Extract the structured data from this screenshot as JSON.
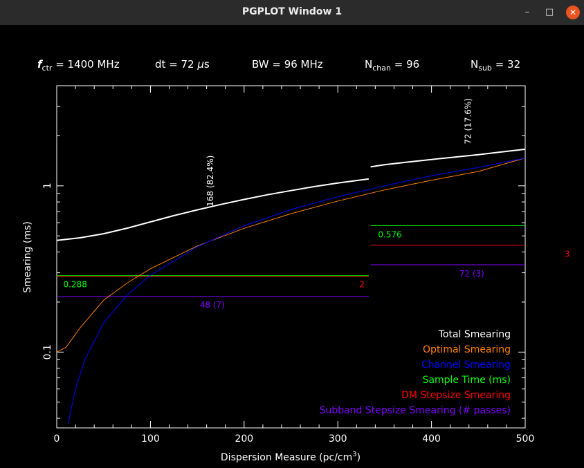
{
  "window": {
    "title": "PGPLOT Window 1",
    "minimize_glyph": "–",
    "maximize_glyph": "□",
    "close_glyph": "✕"
  },
  "header": {
    "fctr": {
      "symbol": "f",
      "sub": "ctr",
      "text": " = 1400 MHz"
    },
    "dt": {
      "text": "dt = 72 ",
      "unit_prefix": "μ",
      "unit": "s"
    },
    "bw": {
      "text": "BW = 96 MHz"
    },
    "nchan": {
      "symbol": "N",
      "sub": "chan",
      "text": " = 96"
    },
    "nsub": {
      "symbol": "N",
      "sub": "sub",
      "text": " = 32"
    }
  },
  "chart_data": {
    "type": "line",
    "xlabel": "Dispersion Measure (pc/cm",
    "xlabel_sup": "3",
    "xlabel_close": ")",
    "ylabel": "Smearing (ms)",
    "xlim": [
      0,
      500
    ],
    "ylim": [
      0.035,
      4.0
    ],
    "yscale": "log",
    "x_ticks": [
      0,
      100,
      200,
      300,
      400,
      500
    ],
    "x_tick_labels": [
      "0",
      "100",
      "200",
      "300",
      "400",
      "500"
    ],
    "y_tick_labels": [
      {
        "value": 0.1,
        "label": "0.1"
      },
      {
        "value": 1,
        "label": "1"
      }
    ],
    "colors": {
      "total": "#ffffff",
      "optimal": "#ff8000",
      "channel": "#0000ff",
      "sample": "#00ff00",
      "dmstep": "#ff0000",
      "subband": "#8000ff"
    },
    "series": [
      {
        "name": "Total Smearing",
        "key": "total",
        "segments": [
          {
            "x": [
              0,
              25,
              50,
              75,
              100,
              125,
              150,
              175,
              200,
              225,
              250,
              275,
              300,
              333
            ],
            "y": [
              0.47,
              0.487,
              0.515,
              0.556,
              0.607,
              0.662,
              0.717,
              0.772,
              0.828,
              0.884,
              0.936,
              0.99,
              1.04,
              1.1
            ]
          },
          {
            "x": [
              335,
              350,
              375,
              400,
              425,
              450,
              475,
              500
            ],
            "y": [
              1.3,
              1.34,
              1.39,
              1.44,
              1.49,
              1.54,
              1.6,
              1.66
            ]
          }
        ]
      },
      {
        "name": "Optimal Smearing",
        "key": "optimal",
        "segments": [
          {
            "x": [
              0,
              10,
              25,
              50,
              75,
              100,
              150,
              200,
              250,
              300,
              350,
              400,
              450,
              500
            ],
            "y": [
              0.1,
              0.107,
              0.14,
              0.205,
              0.26,
              0.317,
              0.435,
              0.555,
              0.68,
              0.81,
              0.945,
              1.08,
              1.22,
              1.47
            ]
          }
        ]
      },
      {
        "name": "Channel Smearing",
        "key": "channel",
        "segments": [
          {
            "x": [
              12,
              20,
              30,
              50,
              75,
              100,
              150,
              200,
              250,
              300,
              350,
              400,
              450,
              500
            ],
            "y": [
              0.037,
              0.06,
              0.09,
              0.15,
              0.22,
              0.29,
              0.43,
              0.575,
              0.72,
              0.86,
              1.0,
              1.15,
              1.29,
              1.47
            ]
          }
        ]
      },
      {
        "name": "Sample Time (ms)",
        "key": "sample",
        "segments": [
          {
            "x": [
              0,
              333
            ],
            "y": [
              0.288,
              0.288
            ]
          },
          {
            "x": [
              335,
              500
            ],
            "y": [
              0.576,
              0.576
            ]
          }
        ]
      },
      {
        "name": "DM Stepsize Smearing",
        "key": "dmstep",
        "segments": [
          {
            "x": [
              0,
              333
            ],
            "y": [
              0.285,
              0.285
            ]
          },
          {
            "x": [
              335,
              500
            ],
            "y": [
              0.44,
              0.44
            ]
          }
        ]
      },
      {
        "name": "Subband Stepsize Smearing (# passes)",
        "key": "subband",
        "segments": [
          {
            "x": [
              0,
              333
            ],
            "y": [
              0.216,
              0.216
            ]
          },
          {
            "x": [
              335,
              500
            ],
            "y": [
              0.335,
              0.335
            ]
          }
        ]
      }
    ],
    "annotations": [
      {
        "id": "ann-168",
        "text": "168 (82.4%)",
        "x": 167,
        "y": 0.75,
        "rotate": -90,
        "color": "#ffffff",
        "anchor": "start"
      },
      {
        "id": "ann-72pct",
        "text": "72 (17.6%)",
        "x": 442,
        "y": 1.78,
        "rotate": -90,
        "color": "#ffffff",
        "anchor": "start"
      },
      {
        "id": "ann-0288",
        "text": "0.288",
        "x": 7,
        "y": 0.245,
        "rotate": 0,
        "color": "#00ff00",
        "anchor": "start"
      },
      {
        "id": "ann-0576",
        "text": "0.576",
        "x": 343,
        "y": 0.49,
        "rotate": 0,
        "color": "#00ff00",
        "anchor": "start"
      },
      {
        "id": "ann-2",
        "text": "2",
        "x": 323,
        "y": 0.245,
        "rotate": 0,
        "color": "#ff0000",
        "anchor": "start"
      },
      {
        "id": "ann-3",
        "text": "3",
        "x": 542,
        "y": 0.375,
        "rotate": 0,
        "color": "#ff0000",
        "anchor": "start"
      },
      {
        "id": "ann-48",
        "text": "48 (7)",
        "x": 166,
        "y": 0.185,
        "rotate": 0,
        "color": "#8000ff",
        "anchor": "middle"
      },
      {
        "id": "ann-72p3",
        "text": "72 (3)",
        "x": 443,
        "y": 0.285,
        "rotate": 0,
        "color": "#8000ff",
        "anchor": "middle"
      }
    ],
    "legend": {
      "position": "bottom-right",
      "items": [
        {
          "label": "Total Smearing",
          "color": "#ffffff"
        },
        {
          "label": "Optimal Smearing",
          "color": "#ff8000"
        },
        {
          "label": "Channel Smearing",
          "color": "#0000ff"
        },
        {
          "label": "Sample Time (ms)",
          "color": "#00ff00"
        },
        {
          "label": "DM Stepsize Smearing",
          "color": "#ff0000"
        },
        {
          "label": "Subband Stepsize Smearing (# passes)",
          "color": "#8000ff"
        }
      ]
    }
  }
}
